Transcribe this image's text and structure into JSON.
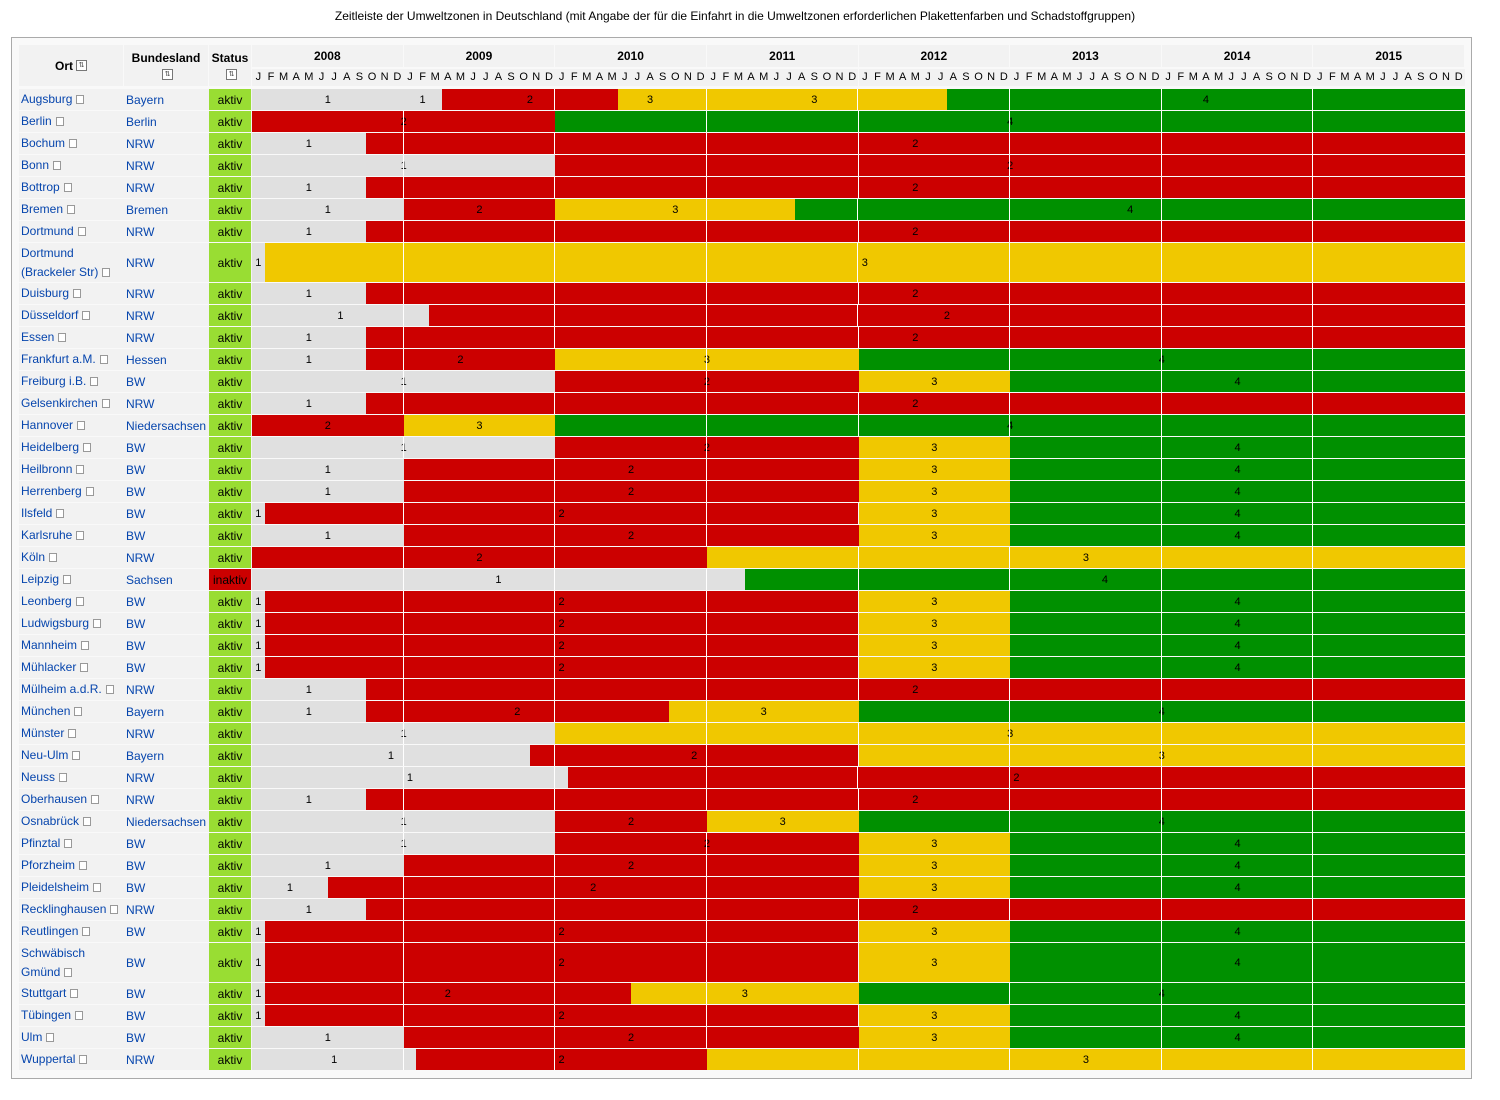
{
  "caption": "Zeitleiste der Umweltzonen in Deutschland (mit Angabe der für die Einfahrt in die Umweltzonen erforderlichen Plakettenfarben und Schadstoffgruppen)",
  "headers": {
    "ort": "Ort",
    "bundesland": "Bundesland",
    "status": "Status"
  },
  "years": [
    "2008",
    "2009",
    "2010",
    "2011",
    "2012",
    "2013",
    "2014",
    "2015"
  ],
  "months": [
    "J",
    "F",
    "M",
    "A",
    "M",
    "J",
    "J",
    "A",
    "S",
    "O",
    "N",
    "D"
  ],
  "colors": {
    "1": "#e0e0e0",
    "2": "#cc0000",
    "3": "#f0c800",
    "4": "#009000",
    "aktiv": "#99dd33",
    "inaktiv": "#cc0000"
  },
  "rows": [
    {
      "ort": "Augsburg",
      "bl": "Bayern",
      "status": "aktiv",
      "tl": "1:12,1:3,2:14,3:5,3:21,4:41"
    },
    {
      "ort": "Berlin",
      "bl": "Berlin",
      "status": "aktiv",
      "tl": "2:24,4:72"
    },
    {
      "ort": "Bochum",
      "bl": "NRW",
      "status": "aktiv",
      "tl": "1:9,2:87"
    },
    {
      "ort": "Bonn",
      "bl": "NRW",
      "status": "aktiv",
      "tl": "1:24,2:72"
    },
    {
      "ort": "Bottrop",
      "bl": "NRW",
      "status": "aktiv",
      "tl": "1:9,2:87"
    },
    {
      "ort": "Bremen",
      "bl": "Bremen",
      "status": "aktiv",
      "tl": "1:12,2:12,3:19,4:53"
    },
    {
      "ort": "Dortmund",
      "bl": "NRW",
      "status": "aktiv",
      "tl": "1:9,2:87"
    },
    {
      "ort": "Dortmund (Brackeler Str)",
      "bl": "NRW",
      "status": "aktiv",
      "tl": "1:1,3:95",
      "tall": true
    },
    {
      "ort": "Duisburg",
      "bl": "NRW",
      "status": "aktiv",
      "tl": "1:9,2:87"
    },
    {
      "ort": "Düsseldorf",
      "bl": "NRW",
      "status": "aktiv",
      "tl": "1:14,2:82"
    },
    {
      "ort": "Essen",
      "bl": "NRW",
      "status": "aktiv",
      "tl": "1:9,2:87"
    },
    {
      "ort": "Frankfurt a.M.",
      "bl": "Hessen",
      "status": "aktiv",
      "tl": "1:9,2:15,3:24,4:48"
    },
    {
      "ort": "Freiburg i.B.",
      "bl": "BW",
      "status": "aktiv",
      "tl": "1:24,2:24,3:12,4:36"
    },
    {
      "ort": "Gelsenkirchen",
      "bl": "NRW",
      "status": "aktiv",
      "tl": "1:9,2:87"
    },
    {
      "ort": "Hannover",
      "bl": "Niedersachsen",
      "status": "aktiv",
      "tl": "2:12,3:12,4:72"
    },
    {
      "ort": "Heidelberg",
      "bl": "BW",
      "status": "aktiv",
      "tl": "1:24,2:24,3:12,4:36"
    },
    {
      "ort": "Heilbronn",
      "bl": "BW",
      "status": "aktiv",
      "tl": "1:12,2:36,3:12,4:36"
    },
    {
      "ort": "Herrenberg",
      "bl": "BW",
      "status": "aktiv",
      "tl": "1:12,2:36,3:12,4:36"
    },
    {
      "ort": "Ilsfeld",
      "bl": "BW",
      "status": "aktiv",
      "tl": "1:1,2:47,3:12,4:36"
    },
    {
      "ort": "Karlsruhe",
      "bl": "BW",
      "status": "aktiv",
      "tl": "1:12,2:36,3:12,4:36"
    },
    {
      "ort": "Köln",
      "bl": "NRW",
      "status": "aktiv",
      "tl": "2:36,3:60"
    },
    {
      "ort": "Leipzig",
      "bl": "Sachsen",
      "status": "inaktiv",
      "tl": "1:39,4:57"
    },
    {
      "ort": "Leonberg",
      "bl": "BW",
      "status": "aktiv",
      "tl": "1:1,2:47,3:12,4:36"
    },
    {
      "ort": "Ludwigsburg",
      "bl": "BW",
      "status": "aktiv",
      "tl": "1:1,2:47,3:12,4:36"
    },
    {
      "ort": "Mannheim",
      "bl": "BW",
      "status": "aktiv",
      "tl": "1:1,2:47,3:12,4:36"
    },
    {
      "ort": "Mühlacker",
      "bl": "BW",
      "status": "aktiv",
      "tl": "1:1,2:47,3:12,4:36"
    },
    {
      "ort": "Mülheim a.d.R.",
      "bl": "NRW",
      "status": "aktiv",
      "tl": "1:9,2:87"
    },
    {
      "ort": "München",
      "bl": "Bayern",
      "status": "aktiv",
      "tl": "1:9,2:24,3:15,4:48"
    },
    {
      "ort": "Münster",
      "bl": "NRW",
      "status": "aktiv",
      "tl": "1:24,3:72"
    },
    {
      "ort": "Neu-Ulm",
      "bl": "Bayern",
      "status": "aktiv",
      "tl": "1:22,2:26,3:48"
    },
    {
      "ort": "Neuss",
      "bl": "NRW",
      "status": "aktiv",
      "tl": "1:25,2:71"
    },
    {
      "ort": "Oberhausen",
      "bl": "NRW",
      "status": "aktiv",
      "tl": "1:9,2:87"
    },
    {
      "ort": "Osnabrück",
      "bl": "Niedersachsen",
      "status": "aktiv",
      "tl": "1:24,2:12,3:12,4:48"
    },
    {
      "ort": "Pfinztal",
      "bl": "BW",
      "status": "aktiv",
      "tl": "1:24,2:24,3:12,4:36"
    },
    {
      "ort": "Pforzheim",
      "bl": "BW",
      "status": "aktiv",
      "tl": "1:12,2:36,3:12,4:36"
    },
    {
      "ort": "Pleidelsheim",
      "bl": "BW",
      "status": "aktiv",
      "tl": "1:6,2:42,3:12,4:36"
    },
    {
      "ort": "Recklinghausen",
      "bl": "NRW",
      "status": "aktiv",
      "tl": "1:9,2:87"
    },
    {
      "ort": "Reutlingen",
      "bl": "BW",
      "status": "aktiv",
      "tl": "1:1,2:47,3:12,4:36"
    },
    {
      "ort": "Schwäbisch Gmünd",
      "bl": "BW",
      "status": "aktiv",
      "tl": "1:1,2:47,3:12,4:36",
      "tall": true
    },
    {
      "ort": "Stuttgart",
      "bl": "BW",
      "status": "aktiv",
      "tl": "1:1,2:29,3:18,4:48"
    },
    {
      "ort": "Tübingen",
      "bl": "BW",
      "status": "aktiv",
      "tl": "1:1,2:47,3:12,4:36"
    },
    {
      "ort": "Ulm",
      "bl": "BW",
      "status": "aktiv",
      "tl": "1:12,2:36,3:12,4:36"
    },
    {
      "ort": "Wuppertal",
      "bl": "NRW",
      "status": "aktiv",
      "tl": "1:13,2:23,3:60"
    }
  ]
}
